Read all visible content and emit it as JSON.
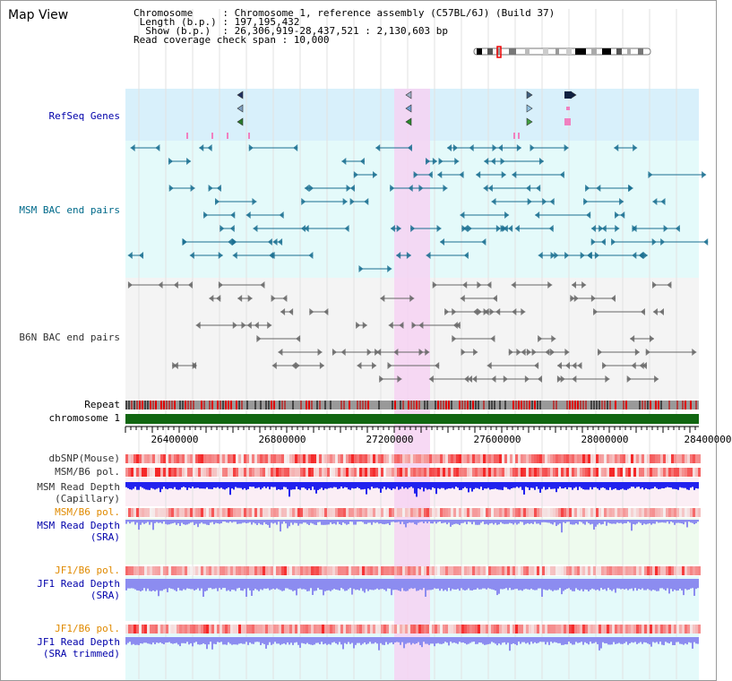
{
  "header": {
    "title": "Map View",
    "info_lines": [
      "Chromosome     : Chromosome 1, reference assembly (C57BL/6J) (Build 37)",
      " Length (b.p.) : 197,195,432",
      "  Show (b.p.)  : 26,306,919-28,437,521 : 2,130,603 bp",
      "Read coverage check span : 10,000"
    ]
  },
  "tracks": {
    "refseq": "RefSeq Genes",
    "msm_bac": "MSM BAC end pairs",
    "b6n_bac": "B6N BAC end pairs",
    "repeat": "Repeat",
    "chromosome": "chromosome 1",
    "dbsnp": "dbSNP(Mouse)",
    "msm_b6_pol_1": "MSM/B6 pol.",
    "msm_read_depth_cap_1": "MSM Read Depth",
    "msm_read_depth_cap_2": "(Capillary)",
    "msm_b6_pol_2": "MSM/B6 pol.",
    "msm_read_depth_sra_1": "MSM Read Depth",
    "msm_read_depth_sra_2": "(SRA)",
    "jf1_b6_pol_1": "JF1/B6 pol.",
    "jf1_read_depth_sra_1": "JF1 Read Depth",
    "jf1_read_depth_sra_2": "(SRA)",
    "jf1_b6_pol_2": "JF1/B6 pol.",
    "jf1_read_depth_trim_1": "JF1 Read Depth",
    "jf1_read_depth_trim_2": "(SRA trimmed)"
  },
  "axis": {
    "ticks": [
      "26400000",
      "26800000",
      "27200000",
      "27600000",
      "28000000",
      "28400000"
    ]
  },
  "colors": {
    "highlight": "#f6d2f2",
    "refseq_bg": "#d8f0fb",
    "bac_bg": "#e4fafa",
    "chromosome": "#116611",
    "depth_blue": "#2222ee",
    "depth_light": "#8c8cf0",
    "pol_red": "#ee3333",
    "label_blue": "#0000aa",
    "label_orange": "#e08a00"
  }
}
